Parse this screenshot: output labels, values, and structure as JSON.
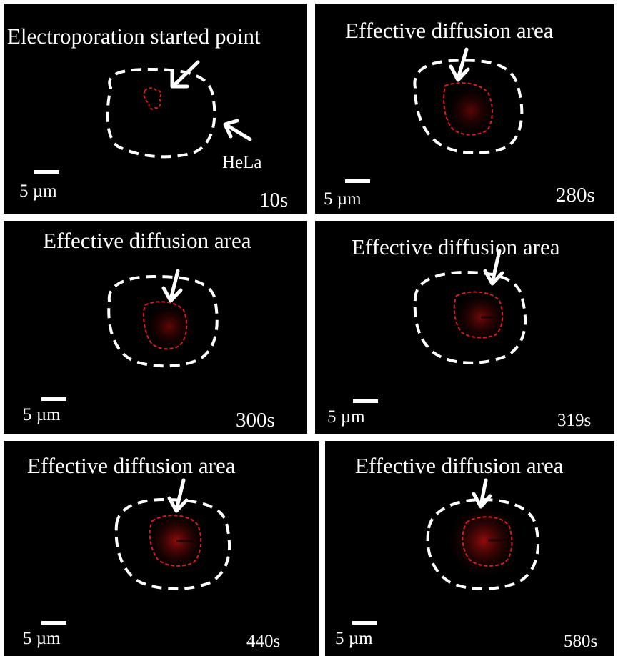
{
  "colors": {
    "background": "#000000",
    "border": "#ffffff",
    "cell_outline": "#ffffff",
    "diffusion_outline": "#d81c1c",
    "diffusion_fill": "#8a0a0a",
    "text": "#ffffff"
  },
  "panels": [
    {
      "title": "Electroporation started point",
      "time": "10s",
      "scale_label": "5 µm",
      "cell_label": "HeLa"
    },
    {
      "title": "Effective diffusion area",
      "time": "280s",
      "scale_label": "5 µm"
    },
    {
      "title": "Effective diffusion area",
      "time": "300s",
      "scale_label": "5 µm"
    },
    {
      "title": "Effective diffusion area",
      "time": "319s",
      "scale_label": "5 µm"
    },
    {
      "title": "Effective diffusion area",
      "time": "440s",
      "scale_label": "5 µm"
    },
    {
      "title": "Effective diffusion area",
      "time": "580s",
      "scale_label": "5 µm"
    }
  ],
  "icons": [
    "arrow-icon",
    "scale-bar"
  ]
}
